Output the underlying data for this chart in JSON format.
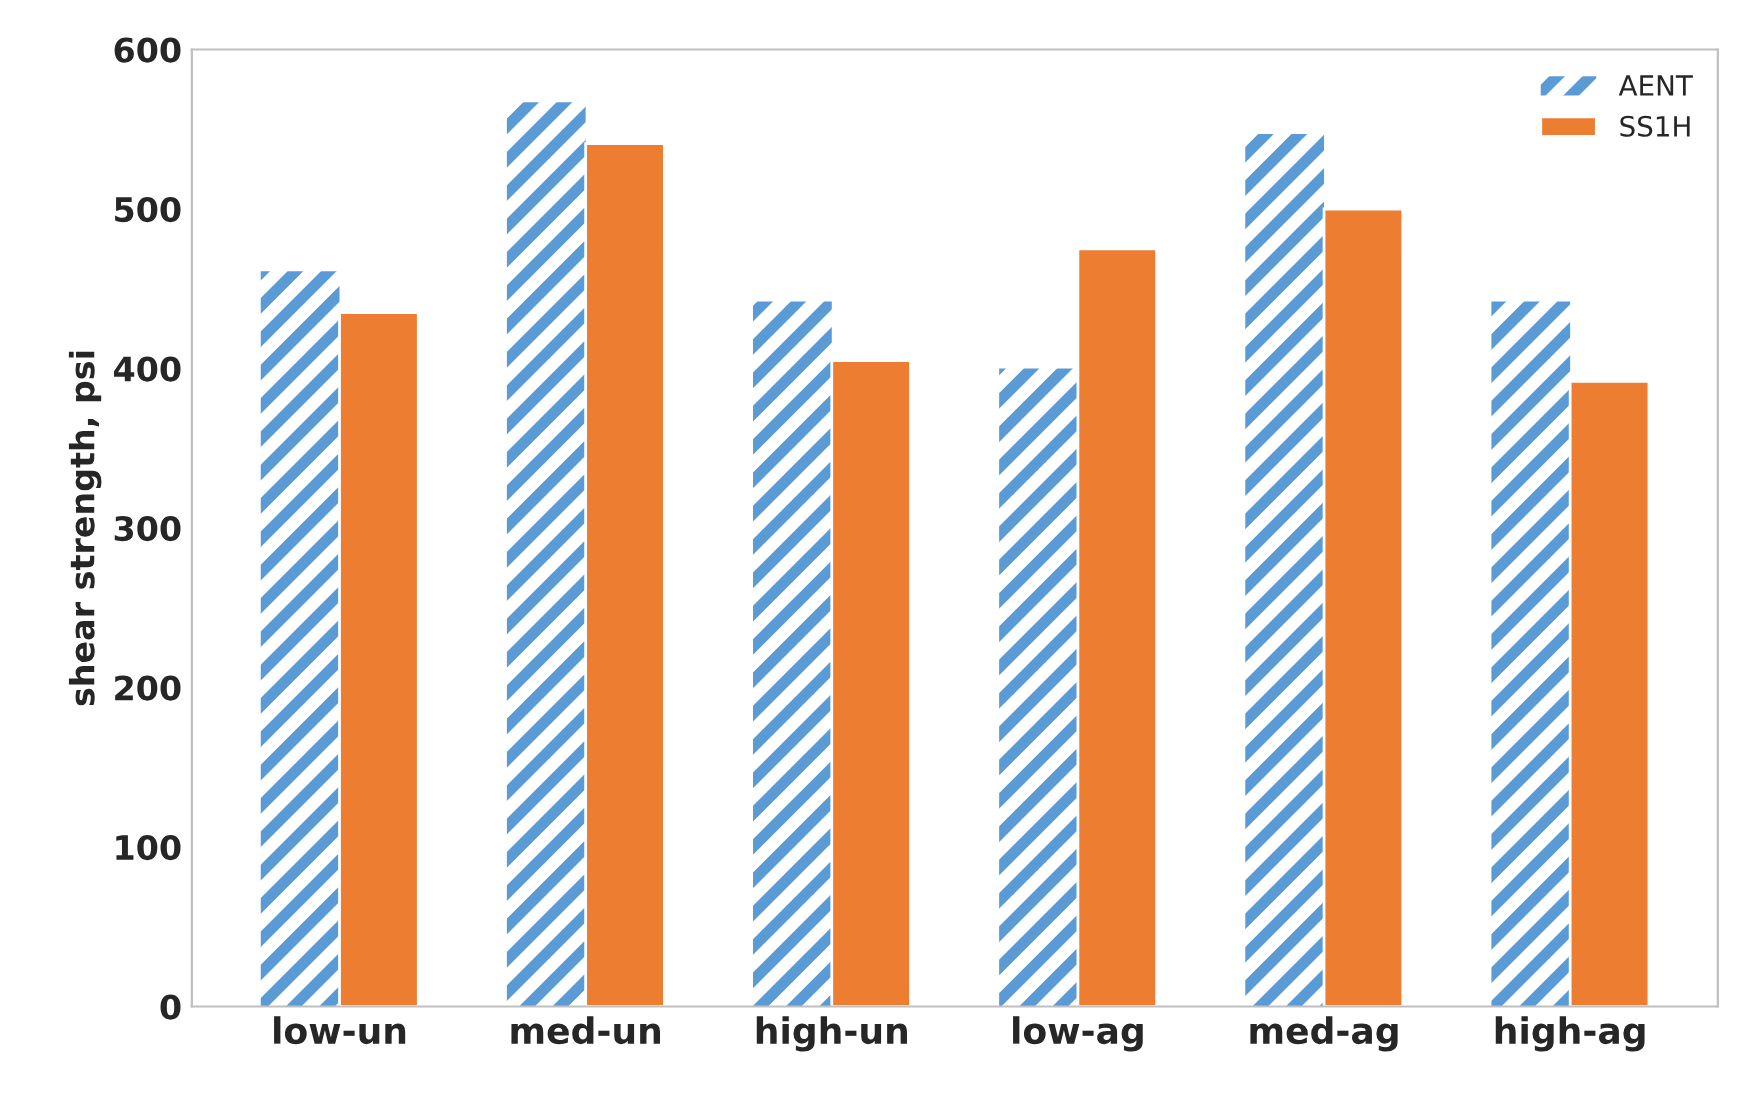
{
  "chart_data": {
    "type": "bar",
    "ylabel": "shear strength, psi",
    "categories": [
      "low-un",
      "med-un",
      "high-un",
      "low-ag",
      "med-ag",
      "high-ag"
    ],
    "series": [
      {
        "name": "AENT",
        "color": "#5b9bd5",
        "values": [
          461,
          567,
          442,
          400,
          547,
          442
        ]
      },
      {
        "name": "SS1H",
        "color": "#ed7d31",
        "values": [
          435,
          541,
          405,
          475,
          500,
          392
        ]
      }
    ],
    "ylim": [
      0,
      600
    ],
    "yticks": [
      0,
      100,
      200,
      300,
      400,
      500,
      600
    ],
    "legend": "top right"
  }
}
